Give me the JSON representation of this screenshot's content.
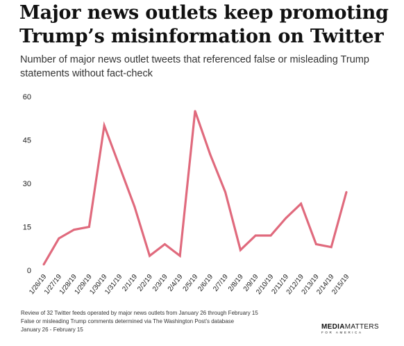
{
  "header": {
    "title": "Major news outlets keep promoting Trump’s misinformation on Twitter",
    "subtitle": "Number of major news outlet tweets that referenced false or misleading Trump statements without fact-check"
  },
  "chart_data": {
    "type": "line",
    "title": "",
    "xlabel": "",
    "ylabel": "",
    "categories": [
      "1/26/19",
      "1/27/19",
      "1/28/19",
      "1/29/19",
      "1/30/19",
      "1/31/19",
      "2/1/19",
      "2/2/19",
      "2/3/19",
      "2/4/19",
      "2/5/19",
      "2/6/19",
      "2/7/19",
      "2/8/19",
      "2/9/19",
      "2/10/19",
      "2/11/19",
      "2/12/19",
      "2/13/19",
      "2/14/19",
      "2/15/19"
    ],
    "series": [
      {
        "values": [
          2,
          11,
          14,
          15,
          50,
          36,
          22,
          5,
          9,
          5,
          55,
          40,
          27,
          7,
          12,
          12,
          18,
          23,
          9,
          8,
          27
        ]
      }
    ],
    "ylim": [
      0,
      60
    ],
    "yticks": [
      0,
      15,
      30,
      45,
      60
    ],
    "grid": false,
    "line_color": "#e06a7d"
  },
  "footnotes": [
    "Review of 32 Twitter feeds operated by major news outlets from January 26 through February 15",
    "False or misleading Trump comments determined via The Washington Post’s database",
    "January 26 - February 15"
  ],
  "logo": {
    "main_bold": "MEDIA",
    "main_light": "MATTERS",
    "sub": "FOR AMERICA"
  }
}
